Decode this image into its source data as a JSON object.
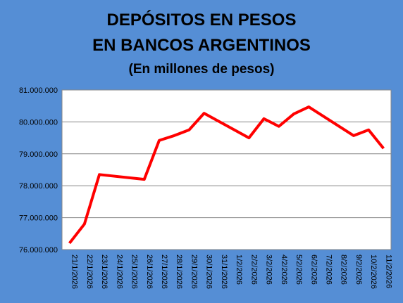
{
  "chart_data": {
    "type": "line",
    "title": [
      "DEPÓSITOS EN PESOS",
      "EN BANCOS ARGENTINOS"
    ],
    "subtitle": "(En millones de pesos)",
    "categories": [
      "21/1/2026",
      "22/1/2026",
      "23/1/2026",
      "24/1/2026",
      "25/1/2026",
      "26/1/2026",
      "27/1/2026",
      "28/1/2026",
      "29/1/2026",
      "30/1/2026",
      "31/1/2026",
      "1/2/2026",
      "2/2/2026",
      "3/2/2026",
      "4/2/2026",
      "5/2/2026",
      "6/2/2026",
      "7/2/2026",
      "8/2/2026",
      "9/2/2026",
      "10/2/2026",
      "11/2/2026"
    ],
    "series": [
      {
        "color": "#ff0000",
        "x": [
          "21/1/2026",
          "22/1/2026",
          "23/1/2026",
          "26/1/2026",
          "27/1/2026",
          "28/1/2026",
          "29/1/2026",
          "30/1/2026",
          "2/2/2026",
          "3/2/2026",
          "4/2/2026",
          "5/2/2026",
          "6/2/2026",
          "9/2/2026",
          "10/2/2026",
          "11/2/2026"
        ],
        "values": [
          76200000,
          76800000,
          78350000,
          78200000,
          79420000,
          79570000,
          79750000,
          80270000,
          79500000,
          80100000,
          79860000,
          80250000,
          80470000,
          79570000,
          79750000,
          79170000
        ]
      }
    ],
    "ylim": [
      76000000,
      81000000
    ],
    "yticks": [
      {
        "value": 76000000,
        "label": "76.000.000"
      },
      {
        "value": 77000000,
        "label": "77.000.000"
      },
      {
        "value": 78000000,
        "label": "78.000.000"
      },
      {
        "value": 79000000,
        "label": "79.000.000"
      },
      {
        "value": 80000000,
        "label": "80.000.000"
      },
      {
        "value": 81000000,
        "label": "81.000.000"
      }
    ],
    "grid": true
  }
}
